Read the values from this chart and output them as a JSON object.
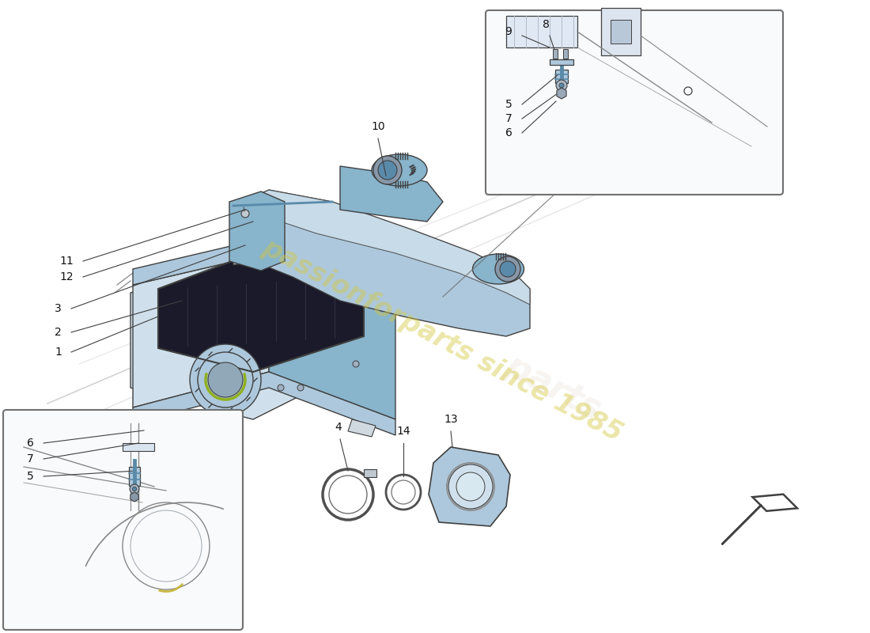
{
  "bg_color": "#ffffff",
  "light_blue": "#adc8dc",
  "mid_blue": "#88b4cc",
  "dark_blue": "#5a8aaa",
  "very_light_blue": "#cfe0ec",
  "line_color": "#404040",
  "gray_line": "#888888",
  "dark_gray": "#2a2a2a",
  "watermark_text": "passionforparts since 1985",
  "watermark_color": "#d4c840",
  "watermark_alpha": 0.45,
  "inset_bg": "#f8fafc",
  "inset_edge": "#707070"
}
